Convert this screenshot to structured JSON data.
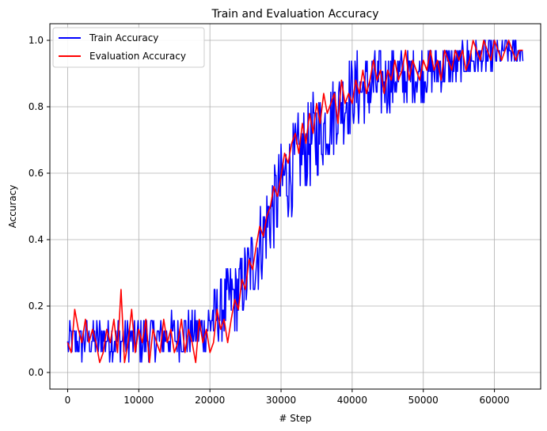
{
  "chart_data": {
    "type": "line",
    "title": "Train and Evaluation Accuracy",
    "xlabel": "# Step",
    "ylabel": "Accuracy",
    "xlim": [
      -2500,
      66500
    ],
    "ylim": [
      -0.05,
      1.05
    ],
    "xticks": [
      0,
      10000,
      20000,
      30000,
      40000,
      50000,
      60000
    ],
    "yticks": [
      0.0,
      0.2,
      0.4,
      0.6,
      0.8,
      1.0
    ],
    "xtick_labels": [
      "0",
      "10000",
      "20000",
      "30000",
      "40000",
      "50000",
      "60000"
    ],
    "ytick_labels": [
      "0.0",
      "0.2",
      "0.4",
      "0.6",
      "0.8",
      "1.0"
    ],
    "grid": true,
    "legend_position": "upper-left",
    "series": [
      {
        "name": "Train Accuracy",
        "color": "#0000ff",
        "style": "noisy",
        "step": 100,
        "x_start": 0,
        "x_end": 64000,
        "trend": [
          [
            0,
            0.09
          ],
          [
            5000,
            0.1
          ],
          [
            10000,
            0.1
          ],
          [
            15000,
            0.11
          ],
          [
            19000,
            0.12
          ],
          [
            21000,
            0.18
          ],
          [
            24000,
            0.24
          ],
          [
            26000,
            0.32
          ],
          [
            28000,
            0.44
          ],
          [
            30000,
            0.56
          ],
          [
            32000,
            0.63
          ],
          [
            34000,
            0.69
          ],
          [
            36000,
            0.74
          ],
          [
            38000,
            0.8
          ],
          [
            40000,
            0.84
          ],
          [
            45000,
            0.88
          ],
          [
            50000,
            0.9
          ],
          [
            55000,
            0.93
          ],
          [
            60000,
            0.96
          ],
          [
            64000,
            0.97
          ]
        ],
        "noise": [
          [
            0,
            0.06
          ],
          [
            19000,
            0.07
          ],
          [
            21000,
            0.1
          ],
          [
            30000,
            0.14
          ],
          [
            40000,
            0.12
          ],
          [
            50000,
            0.08
          ],
          [
            60000,
            0.05
          ],
          [
            64000,
            0.04
          ]
        ]
      },
      {
        "name": "Evaluation Accuracy",
        "color": "#ff0000",
        "style": "line",
        "x": [
          0,
          500,
          1000,
          1500,
          2000,
          2500,
          3000,
          3500,
          4000,
          4500,
          5000,
          5500,
          6000,
          6500,
          7000,
          7500,
          8000,
          8500,
          9000,
          9500,
          10000,
          10500,
          11000,
          11500,
          12000,
          12500,
          13000,
          13500,
          14000,
          14500,
          15000,
          15500,
          16000,
          16500,
          17000,
          17500,
          18000,
          18500,
          19000,
          19500,
          20000,
          20500,
          21000,
          21500,
          22000,
          22500,
          23000,
          23500,
          24000,
          24500,
          25000,
          25500,
          26000,
          26500,
          27000,
          27500,
          28000,
          28500,
          29000,
          29500,
          30000,
          30500,
          31000,
          31500,
          32000,
          32500,
          33000,
          33500,
          34000,
          34500,
          35000,
          35500,
          36000,
          36500,
          37000,
          37500,
          38000,
          38500,
          39000,
          39500,
          40000,
          40500,
          41000,
          41500,
          42000,
          42500,
          43000,
          43500,
          44000,
          44500,
          45000,
          45500,
          46000,
          46500,
          47000,
          47500,
          48000,
          48500,
          49000,
          49500,
          50000,
          50500,
          51000,
          51500,
          52000,
          52500,
          53000,
          53500,
          54000,
          54500,
          55000,
          55500,
          56000,
          56500,
          57000,
          57500,
          58000,
          58500,
          59000,
          59500,
          60000,
          60500,
          61000,
          61500,
          62000,
          62500,
          63000,
          63500,
          64000
        ],
        "values": [
          0.09,
          0.06,
          0.19,
          0.13,
          0.09,
          0.16,
          0.09,
          0.13,
          0.09,
          0.03,
          0.06,
          0.13,
          0.09,
          0.16,
          0.06,
          0.25,
          0.03,
          0.09,
          0.19,
          0.06,
          0.13,
          0.09,
          0.16,
          0.03,
          0.13,
          0.09,
          0.06,
          0.16,
          0.09,
          0.13,
          0.06,
          0.09,
          0.16,
          0.06,
          0.13,
          0.09,
          0.03,
          0.16,
          0.09,
          0.13,
          0.06,
          0.09,
          0.19,
          0.13,
          0.16,
          0.09,
          0.16,
          0.22,
          0.19,
          0.28,
          0.25,
          0.34,
          0.31,
          0.38,
          0.44,
          0.41,
          0.47,
          0.5,
          0.56,
          0.53,
          0.59,
          0.66,
          0.63,
          0.69,
          0.72,
          0.66,
          0.75,
          0.69,
          0.78,
          0.72,
          0.81,
          0.75,
          0.84,
          0.78,
          0.81,
          0.84,
          0.75,
          0.88,
          0.81,
          0.84,
          0.81,
          0.88,
          0.84,
          0.91,
          0.84,
          0.88,
          0.94,
          0.88,
          0.91,
          0.84,
          0.91,
          0.88,
          0.94,
          0.88,
          0.91,
          0.97,
          0.88,
          0.94,
          0.91,
          0.88,
          0.94,
          0.91,
          0.97,
          0.91,
          0.94,
          0.88,
          0.97,
          0.94,
          0.91,
          0.97,
          0.94,
          0.97,
          0.91,
          0.94,
          1.0,
          0.97,
          0.94,
          1.0,
          0.97,
          0.94,
          1.0,
          0.97,
          0.94,
          0.97,
          1.0,
          0.97,
          0.94,
          0.97,
          0.97
        ]
      }
    ]
  }
}
